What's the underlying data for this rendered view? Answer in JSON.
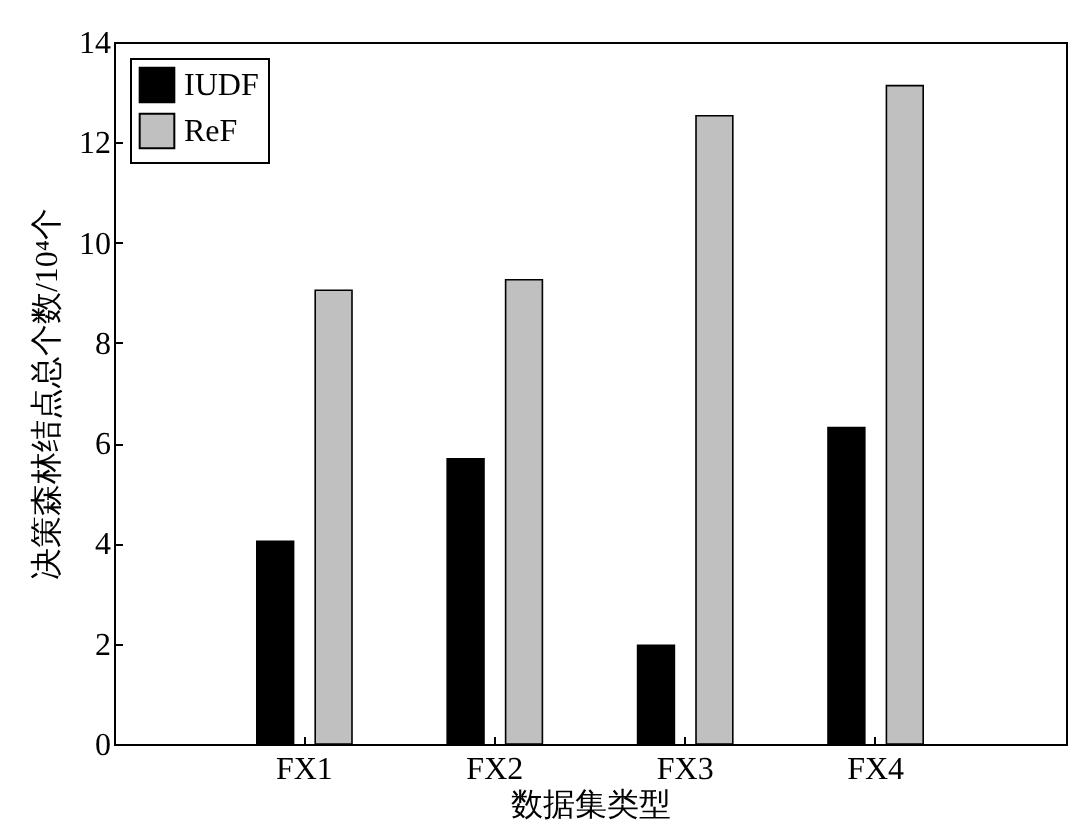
{
  "chart_data": {
    "type": "bar",
    "xlabel": "数据集类型",
    "ylabel": "决策森林结点总个数/10⁴个",
    "categories": [
      "FX1",
      "FX2",
      "FX3",
      "FX4"
    ],
    "series": [
      {
        "name": "IUDF",
        "color": "#000000",
        "values": [
          4.04,
          5.69,
          1.97,
          6.31
        ]
      },
      {
        "name": "ReF",
        "color": "#c0c0c0",
        "values": [
          9.05,
          9.26,
          12.53,
          13.13
        ]
      }
    ],
    "ylim": [
      0,
      14
    ],
    "yticks": [
      0,
      2,
      4,
      6,
      8,
      10,
      12,
      14
    ],
    "grid": false,
    "legend": "top left"
  }
}
